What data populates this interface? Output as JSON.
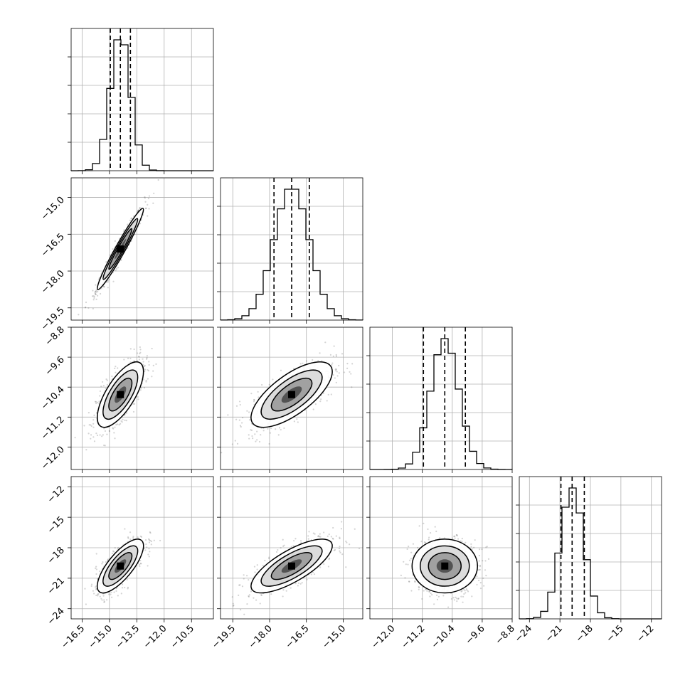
{
  "chart_data": {
    "type": "corner",
    "grid": true,
    "params": [
      {
        "range": [
          -17.1,
          -9.3
        ],
        "mean": -14.4,
        "std": 0.55,
        "quantiles": [
          -14.95,
          -14.4,
          -13.85
        ],
        "ticks": [
          -16.5,
          -15.0,
          -13.5,
          -12.0,
          -10.5
        ],
        "tick_labels": [
          "−16.5",
          "−15.0",
          "−13.5",
          "−12.0",
          "−10.5"
        ]
      },
      {
        "range": [
          -20.0,
          -14.2
        ],
        "mean": -17.1,
        "std": 0.72,
        "quantiles": [
          -17.82,
          -17.1,
          -16.38
        ],
        "ticks": [
          -19.5,
          -18.0,
          -16.5,
          -15.0
        ],
        "tick_labels": [
          "−19.5",
          "−18.0",
          "−16.5",
          "−15.0"
        ]
      },
      {
        "range": [
          -12.6,
          -8.8
        ],
        "mean": -10.6,
        "std": 0.38,
        "quantiles": [
          -11.17,
          -10.6,
          -10.05
        ],
        "ticks": [
          -12.0,
          -11.2,
          -10.4,
          -9.6,
          -8.8
        ],
        "tick_labels": [
          "−12.0",
          "−11.2",
          "−10.4",
          "−9.6",
          "−8.8"
        ]
      },
      {
        "range": [
          -25.0,
          -11.0
        ],
        "mean": -19.8,
        "std": 1.15,
        "quantiles": [
          -20.9,
          -19.8,
          -18.6
        ],
        "ticks": [
          -24,
          -21,
          -18,
          -15,
          -12
        ],
        "tick_labels": [
          "−24",
          "−21",
          "−18",
          "−15",
          "−12"
        ]
      }
    ],
    "correlations": [
      [
        1.0,
        0.97,
        0.7,
        0.75
      ],
      [
        0.97,
        1.0,
        0.7,
        0.75
      ],
      [
        0.7,
        0.7,
        1.0,
        0.0
      ],
      [
        0.75,
        0.75,
        0.0,
        1.0
      ]
    ],
    "histogram_bins": 20,
    "contour_levels_sigma": [
      0.5,
      1.0,
      1.5,
      2.0
    ]
  }
}
